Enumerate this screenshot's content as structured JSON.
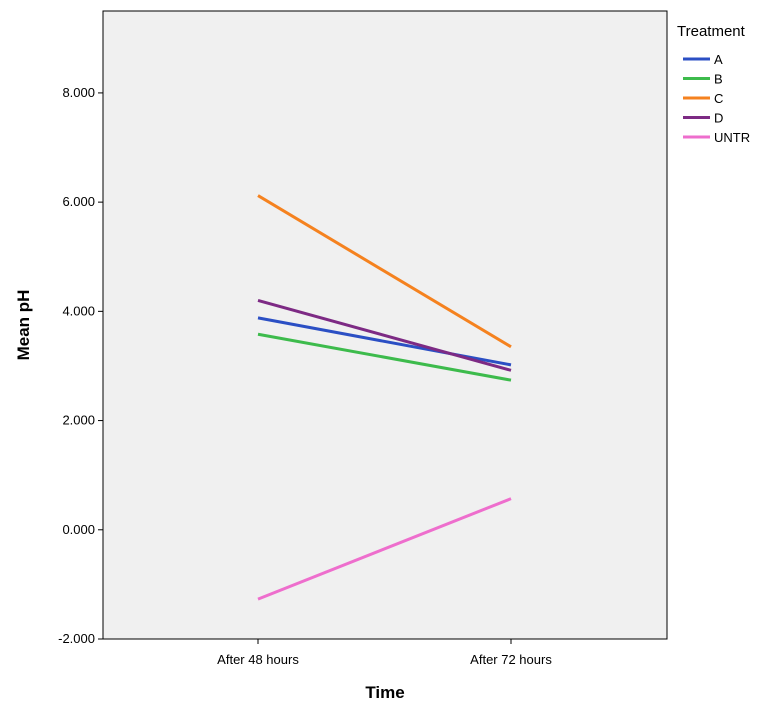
{
  "chart_data": {
    "type": "line",
    "title": "",
    "xlabel": "Time",
    "ylabel": "Mean pH",
    "categories": [
      "After 48 hours",
      "After 72 hours"
    ],
    "ylim": [
      -2,
      9.5
    ],
    "yticks": [
      -2,
      0,
      2,
      4,
      6,
      8
    ],
    "ytick_labels": [
      "-2.000",
      "0.000",
      "2.000",
      "4.000",
      "6.000",
      "8.000"
    ],
    "grid": false,
    "background": "#f0f0f0",
    "legend": {
      "title": "Treatment",
      "placement": "right"
    },
    "series": [
      {
        "name": "A",
        "color": "#2b4fc4",
        "values": [
          3.88,
          3.02
        ]
      },
      {
        "name": "B",
        "color": "#3dbb4c",
        "values": [
          3.58,
          2.74
        ]
      },
      {
        "name": "C",
        "color": "#f5821f",
        "values": [
          6.12,
          3.35
        ]
      },
      {
        "name": "D",
        "color": "#7d2a84",
        "values": [
          4.2,
          2.92
        ]
      },
      {
        "name": "UNTR",
        "color": "#ee6ecd",
        "values": [
          -1.27,
          0.57
        ]
      }
    ]
  }
}
